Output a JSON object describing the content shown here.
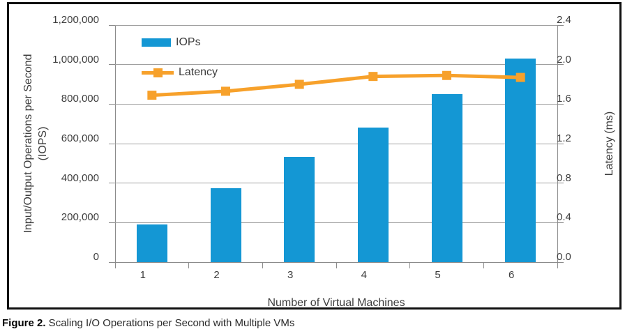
{
  "figure": {
    "caption_label": "Figure 2.",
    "caption_text": " Scaling I/O Operations per Second with Multiple VMs"
  },
  "chart_data": {
    "type": "bar",
    "subtype": "bar-with-line-overlay",
    "categories": [
      "1",
      "2",
      "3",
      "4",
      "5",
      "6"
    ],
    "series": [
      {
        "name": "IOPs",
        "type": "bar",
        "axis": "left",
        "color": "#1497D4",
        "values": [
          190000,
          373000,
          533000,
          682000,
          851000,
          1030000
        ]
      },
      {
        "name": "Latency",
        "type": "line",
        "axis": "right",
        "color": "#F7A12B",
        "marker": "square",
        "values": [
          1.69,
          1.73,
          1.8,
          1.88,
          1.89,
          1.87
        ]
      }
    ],
    "xlabel": "Number of Virtual Machines",
    "ylabel_left": {
      "line1": "Input/Output Operations per Second",
      "line2": "(IOPS)"
    },
    "ylabel_right": "Latency (ms)",
    "left_axis": {
      "min": 0,
      "max": 1200000,
      "step": 200000,
      "tick_labels": [
        "0",
        "200,000",
        "400,000",
        "600,000",
        "800,000",
        "1,000,000",
        "1,200,000"
      ]
    },
    "right_axis": {
      "min": 0,
      "max": 2.4,
      "step": 0.4,
      "tick_labels": [
        "0.0",
        "0.4",
        "0.8",
        "1.2",
        "1.6",
        "2.0",
        "2.4"
      ]
    },
    "legend_position": "top-left-inside",
    "grid": "horizontal",
    "grid_color": "#A0A0A0"
  }
}
